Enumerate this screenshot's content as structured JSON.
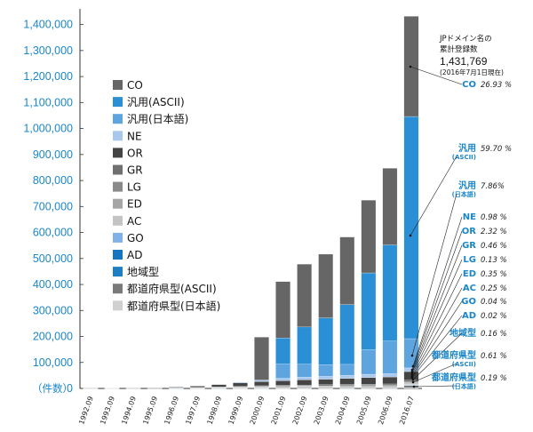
{
  "chart_data": {
    "type": "bar",
    "stacked": true,
    "unit_label": "（件数）",
    "ylim": [
      0,
      1450000
    ],
    "yticks": [
      "0",
      "100,000",
      "200,000",
      "300,000",
      "400,000",
      "500,000",
      "600,000",
      "700,000",
      "800,000",
      "900,000",
      "1,000,000",
      "1,100,000",
      "1,200,000",
      "1,300,000",
      "1,400,000"
    ],
    "categories": [
      "1992.09",
      "1993.09",
      "1994.09",
      "1995.09",
      "1996.09",
      "1997.09",
      "1998.09",
      "1999.09",
      "2000.09",
      "2001.09",
      "2002.09",
      "2003.09",
      "2004.09",
      "2005.09",
      "2006.09",
      "2016.07"
    ],
    "legend_position": "inside-left",
    "series": [
      {
        "name": "CO",
        "color": "#666666",
        "values": [
          0,
          0,
          0,
          0,
          0,
          0,
          0,
          0,
          165000,
          217000,
          242000,
          245000,
          260000,
          280000,
          295000,
          385500
        ]
      },
      {
        "name": "汎用(ASCII)",
        "color": "#2b8fd6",
        "values": [
          0,
          0,
          0,
          0,
          0,
          0,
          0,
          0,
          0,
          100000,
          143000,
          180000,
          230000,
          295000,
          370000,
          854800
        ]
      },
      {
        "name": "汎用(日本語)",
        "color": "#5ea5e0",
        "values": [
          0,
          0,
          0,
          0,
          0,
          0,
          0,
          0,
          0,
          55000,
          50000,
          45000,
          42000,
          95000,
          125000,
          112600
        ]
      },
      {
        "name": "NE",
        "color": "#a9c8ec",
        "values": [
          0,
          0,
          0,
          0,
          0,
          0,
          0,
          3000,
          6000,
          9000,
          10000,
          11000,
          12000,
          13000,
          13000,
          14000
        ]
      },
      {
        "name": "OR",
        "color": "#444444",
        "values": [
          300,
          600,
          900,
          1500,
          2800,
          5000,
          9000,
          13500,
          16000,
          18000,
          20000,
          21000,
          23000,
          25000,
          27000,
          33200
        ]
      },
      {
        "name": "GR",
        "color": "#707070",
        "values": [
          0,
          0,
          0,
          0,
          200,
          700,
          1500,
          2500,
          3000,
          3500,
          4000,
          4500,
          5000,
          5500,
          6000,
          6600
        ]
      },
      {
        "name": "LG",
        "color": "#8a8a8a",
        "values": [
          0,
          0,
          0,
          0,
          0,
          0,
          0,
          300,
          900,
          1200,
          1400,
          1500,
          1600,
          1700,
          1800,
          1900
        ]
      },
      {
        "name": "ED",
        "color": "#a6a6a6",
        "values": [
          100,
          200,
          300,
          500,
          1000,
          1500,
          2000,
          2600,
          3200,
          3700,
          4100,
          4500,
          4800,
          5000,
          5000,
          5000
        ]
      },
      {
        "name": "AC",
        "color": "#c4c4c4",
        "values": [
          200,
          300,
          400,
          600,
          1000,
          1400,
          1800,
          2200,
          2600,
          2900,
          3100,
          3300,
          3400,
          3500,
          3600,
          3600
        ]
      },
      {
        "name": "GO",
        "color": "#7fb2e6",
        "values": [
          0,
          0,
          0,
          0,
          100,
          200,
          300,
          400,
          500,
          500,
          500,
          550,
          550,
          550,
          550,
          570
        ]
      },
      {
        "name": "AD",
        "color": "#1476c0",
        "values": [
          0,
          0,
          0,
          0,
          50,
          100,
          150,
          200,
          200,
          250,
          250,
          250,
          250,
          250,
          280,
          290
        ]
      },
      {
        "name": "地域型",
        "color": "#1d7fc3",
        "values": [
          0,
          0,
          0,
          0,
          0,
          0,
          0,
          0,
          0,
          0,
          0,
          0,
          0,
          0,
          0,
          2290
        ]
      },
      {
        "name": "都道府県型(ASCII)",
        "color": "#7a7a7a",
        "values": [
          0,
          0,
          0,
          0,
          0,
          0,
          0,
          0,
          0,
          0,
          0,
          0,
          0,
          0,
          0,
          8730
        ]
      },
      {
        "name": "都道府県型(日本語)",
        "color": "#d0d0d0",
        "values": [
          0,
          0,
          0,
          0,
          0,
          0,
          0,
          0,
          0,
          0,
          0,
          0,
          0,
          0,
          0,
          2720
        ]
      }
    ],
    "annotation": {
      "title_line1": "JPドメイン名の",
      "title_line2": "累計登録数",
      "total": "1,431,769",
      "as_of": "(2016年7月1日現在)"
    },
    "right_labels": [
      {
        "label": "CO",
        "sub": "",
        "pct": "26.93 %"
      },
      {
        "label": "汎用",
        "sub": "(ASCII)",
        "pct": "59.70 %"
      },
      {
        "label": "汎用",
        "sub": "(日本語)",
        "pct": "7.86%"
      },
      {
        "label": "NE",
        "sub": "",
        "pct": "0.98 %"
      },
      {
        "label": "OR",
        "sub": "",
        "pct": "2.32 %"
      },
      {
        "label": "GR",
        "sub": "",
        "pct": "0.46 %"
      },
      {
        "label": "LG",
        "sub": "",
        "pct": "0.13 %"
      },
      {
        "label": "ED",
        "sub": "",
        "pct": "0.35 %"
      },
      {
        "label": "AC",
        "sub": "",
        "pct": "0.25 %"
      },
      {
        "label": "GO",
        "sub": "",
        "pct": "0.04 %"
      },
      {
        "label": "AD",
        "sub": "",
        "pct": "0.02 %"
      },
      {
        "label": "地域型",
        "sub": "",
        "pct": "0.16 %"
      },
      {
        "label": "都道府県型",
        "sub": "(ASCII)",
        "pct": "0.61 %"
      },
      {
        "label": "都道府県型",
        "sub": "(日本語)",
        "pct": "0.19 %"
      }
    ]
  }
}
